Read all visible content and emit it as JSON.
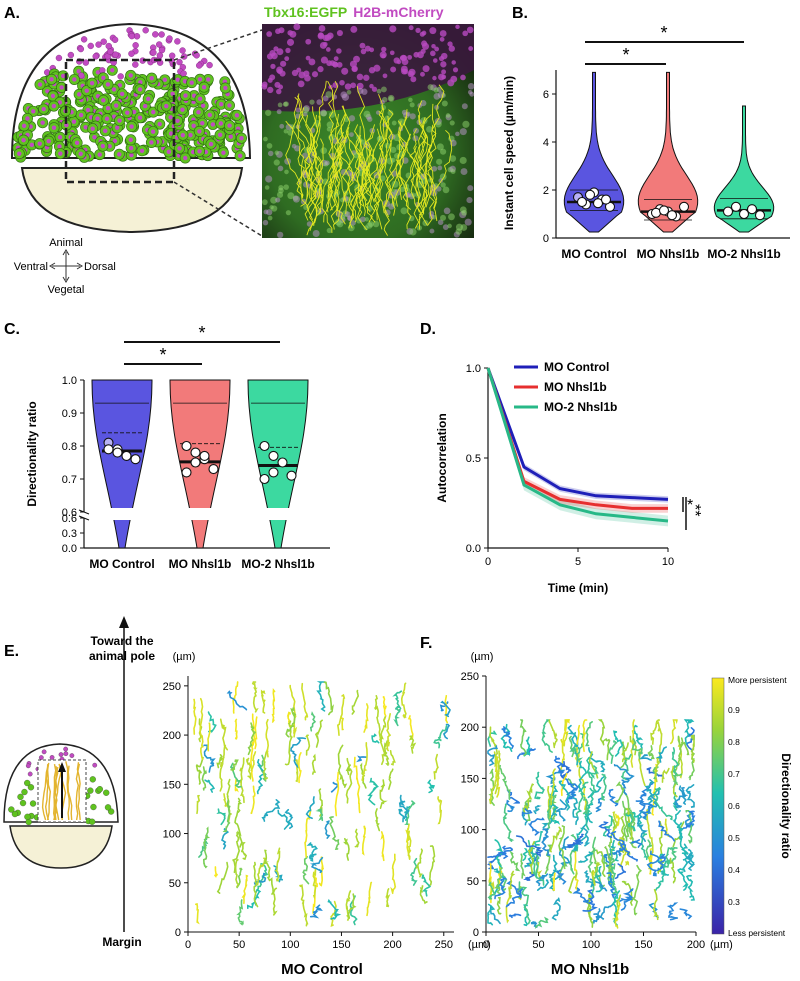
{
  "panels": {
    "a": "A.",
    "b": "B.",
    "c": "C.",
    "d": "D.",
    "e": "E.",
    "f": "F."
  },
  "panel_a": {
    "reporter_green": "Tbx16:EGFP",
    "reporter_magenta": "H2B-mCherry",
    "compass": {
      "animal": "Animal",
      "vegetal": "Vegetal",
      "ventral": "Ventral",
      "dorsal": "Dorsal"
    },
    "colors": {
      "green": "#5fc21f",
      "magenta": "#c14bc1",
      "track": "#e9ec20"
    }
  },
  "panel_b": {
    "sig1": "*",
    "sig2": "*",
    "chart_data": {
      "type": "violin",
      "ylabel": "Instant cell speed (µm/min)",
      "ylim": [
        0,
        7
      ],
      "yticks": [
        "0",
        "2",
        "4",
        "6"
      ],
      "categories": [
        "MO Control",
        "MO Nhsl1b",
        "MO-2 Nhsl1b"
      ],
      "medians": [
        1.5,
        1.1,
        1.15
      ],
      "embryo_means": [
        [
          1.7,
          1.4,
          1.9,
          1.6,
          1.3,
          1.5,
          1.8,
          1.45,
          1.6
        ],
        [
          1.0,
          1.2,
          1.1,
          0.9,
          1.3,
          1.05,
          1.15,
          0.95
        ],
        [
          1.1,
          1.3,
          1.0,
          1.2,
          0.95
        ]
      ],
      "colors": [
        "#5a55e0",
        "#f27a7a",
        "#3cd9a0"
      ]
    }
  },
  "panel_c": {
    "sig1": "*",
    "sig2": "*",
    "chart_data": {
      "type": "violin",
      "ylabel": "Directionality ratio",
      "yticks": [
        "0.0",
        "0.3",
        "0.6",
        "0.6",
        "0.7",
        "0.8",
        "0.9",
        "1.0"
      ],
      "categories": [
        "MO Control",
        "MO Nhsl1b",
        "MO-2 Nhsl1b"
      ],
      "medians": [
        0.785,
        0.752,
        0.741
      ],
      "embryo_means": [
        [
          0.81,
          0.79,
          0.77,
          0.76,
          0.79,
          0.78
        ],
        [
          0.8,
          0.78,
          0.76,
          0.73,
          0.72,
          0.75,
          0.77
        ],
        [
          0.8,
          0.77,
          0.75,
          0.71,
          0.7,
          0.72
        ]
      ],
      "colors": [
        "#5a55e0",
        "#f27a7a",
        "#3cd9a0"
      ]
    }
  },
  "panel_d": {
    "sig1": "*",
    "sig2": "**",
    "chart_data": {
      "type": "line",
      "xlabel": "Time (min)",
      "ylabel": "Autocorrelation",
      "xlim": [
        0,
        10
      ],
      "ylim": [
        0,
        1
      ],
      "xticks": [
        "0",
        "5",
        "10"
      ],
      "yticks": [
        "0.0",
        "0.5",
        "1.0"
      ],
      "x": [
        0,
        2,
        4,
        6,
        8,
        10
      ],
      "series": [
        {
          "name": "MO Control",
          "color": "#1f1fb8",
          "values": [
            1.0,
            0.45,
            0.33,
            0.29,
            0.28,
            0.27
          ]
        },
        {
          "name": "MO Nhsl1b",
          "color": "#e62f2f",
          "values": [
            1.0,
            0.37,
            0.27,
            0.24,
            0.22,
            0.22
          ]
        },
        {
          "name": "MO-2 Nhsl1b",
          "color": "#27b887",
          "values": [
            1.0,
            0.35,
            0.24,
            0.19,
            0.17,
            0.15
          ]
        }
      ]
    }
  },
  "panel_e": {
    "arrow_top1": "Toward the",
    "arrow_top2": "animal pole",
    "arrow_bottom": "Margin",
    "unit_y": "(µm)",
    "unit_x": "(µm)",
    "xticks": [
      "0",
      "50",
      "100",
      "150",
      "200",
      "250"
    ],
    "yticks": [
      "0",
      "50",
      "100",
      "150",
      "200",
      "250"
    ],
    "title": "MO Control"
  },
  "panel_f": {
    "unit_y": "(µm)",
    "unit_x": "(µm)",
    "xticks": [
      "0",
      "50",
      "100",
      "150",
      "200"
    ],
    "yticks": [
      "0",
      "50",
      "100",
      "150",
      "200",
      "250"
    ],
    "title": "MO Nhsl1b",
    "colorbar": {
      "label": "Directionality ratio",
      "top": "More persistent",
      "bottom": "Less persistent",
      "ticks": [
        "0.3",
        "0.4",
        "0.5",
        "0.6",
        "0.7",
        "0.8",
        "0.9"
      ]
    }
  }
}
